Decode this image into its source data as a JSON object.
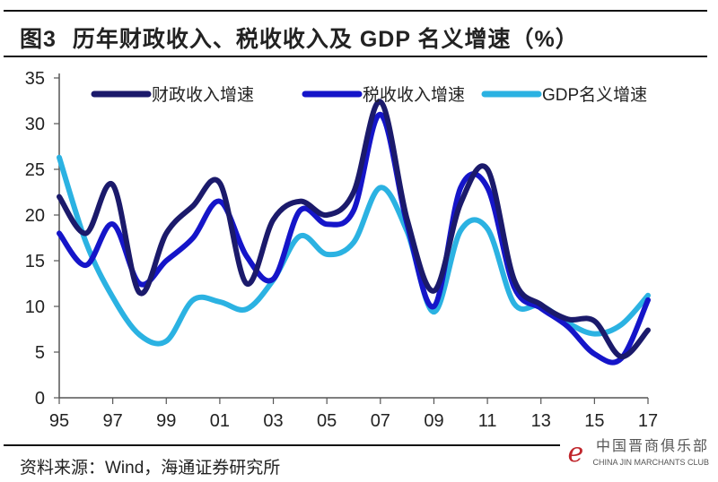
{
  "header": {
    "figure_no": "图3",
    "title": "历年财政收入、税收收入及 GDP 名义增速（%）"
  },
  "footer": {
    "source": "资料来源：Wind，海通证券研究所",
    "watermark_cn": "中国晋商俱乐部",
    "watermark_en": "CHINA JIN MARCHANTS CLUB"
  },
  "chart_data": {
    "type": "line",
    "title": "历年财政收入、税收收入及 GDP 名义增速（%）",
    "xlabel": "",
    "ylabel": "",
    "x": [
      1995,
      1996,
      1997,
      1998,
      1999,
      2000,
      2001,
      2002,
      2003,
      2004,
      2005,
      2006,
      2007,
      2008,
      2009,
      2010,
      2011,
      2012,
      2013,
      2014,
      2015,
      2016,
      2017
    ],
    "xticks": [
      "95",
      "97",
      "99",
      "01",
      "03",
      "05",
      "07",
      "09",
      "11",
      "13",
      "15",
      "17"
    ],
    "yticks": [
      "0",
      "5",
      "10",
      "15",
      "20",
      "25",
      "30",
      "35"
    ],
    "ylim": [
      0,
      35
    ],
    "grid": false,
    "legend": "top",
    "series": [
      {
        "name": "财政收入增速",
        "color": "#1b1a6b",
        "values": [
          22,
          18,
          23.3,
          11.5,
          18,
          21,
          23.5,
          12.5,
          19.5,
          21.5,
          20,
          22.5,
          32.4,
          19.5,
          11.7,
          21.3,
          25,
          12.9,
          10.2,
          8.6,
          8.4,
          4.5,
          7.4
        ]
      },
      {
        "name": "税收收入增速",
        "color": "#1515c9",
        "values": [
          18,
          14.5,
          19,
          12.5,
          15,
          17.5,
          21.5,
          15.5,
          13,
          20.5,
          19,
          20.5,
          31,
          19,
          10,
          23,
          23,
          12.1,
          9.8,
          7.8,
          4.8,
          4.3,
          10.7
        ]
      },
      {
        "name": "GDP名义增速",
        "color": "#2bb2e2",
        "values": [
          26.3,
          17,
          11,
          6.9,
          6.2,
          10.7,
          10.5,
          9.7,
          12.9,
          17.7,
          15.7,
          17,
          23,
          18.2,
          9.4,
          18.3,
          18.5,
          10.3,
          10.1,
          8.2,
          7,
          8,
          11.2
        ]
      }
    ]
  }
}
